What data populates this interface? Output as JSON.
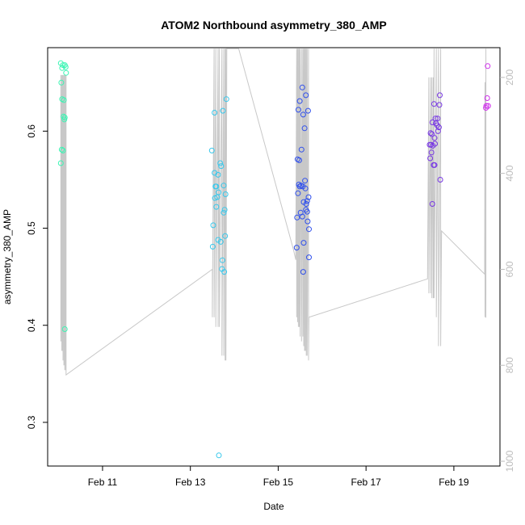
{
  "chart_data": {
    "type": "scatter",
    "title": "ATOM2 Northbound asymmetry_380_AMP",
    "xlabel": "Date",
    "ylabel": "asymmetry_380_AMP",
    "x_ticks": [
      "Feb 11",
      "Feb 13",
      "Feb 15",
      "Feb 17",
      "Feb 19"
    ],
    "x_tick_days": [
      11,
      13,
      15,
      17,
      19
    ],
    "xlim_days": [
      9.75,
      20.05
    ],
    "y_ticks": [
      0.3,
      0.4,
      0.5,
      0.6
    ],
    "ylim": [
      0.255,
      0.686
    ],
    "y2_ticks": [
      200,
      400,
      600,
      800,
      1000
    ],
    "y2lim": [
      1010,
      138
    ],
    "grid": false,
    "legend": "none",
    "colors": {
      "axis": "#000000",
      "line": "#c8c8c8",
      "right_axis": "#bdbdbd"
    },
    "series": [
      {
        "color": "#3cf5b4",
        "points": [
          [
            10.05,
            0.67
          ],
          [
            10.1,
            0.668
          ],
          [
            10.14,
            0.668
          ],
          [
            10.16,
            0.666
          ],
          [
            10.08,
            0.665
          ],
          [
            10.17,
            0.66
          ],
          [
            10.06,
            0.65
          ],
          [
            10.08,
            0.633
          ],
          [
            10.12,
            0.632
          ],
          [
            10.11,
            0.615
          ],
          [
            10.14,
            0.614
          ],
          [
            10.13,
            0.612
          ],
          [
            10.07,
            0.581
          ],
          [
            10.1,
            0.58
          ],
          [
            10.05,
            0.567
          ],
          [
            10.14,
            0.396
          ]
        ]
      },
      {
        "color": "#38c8ec",
        "points": [
          [
            13.55,
            0.619
          ],
          [
            13.74,
            0.621
          ],
          [
            13.82,
            0.633
          ],
          [
            13.49,
            0.58
          ],
          [
            13.68,
            0.567
          ],
          [
            13.7,
            0.564
          ],
          [
            13.55,
            0.557
          ],
          [
            13.63,
            0.555
          ],
          [
            13.59,
            0.543
          ],
          [
            13.57,
            0.543
          ],
          [
            13.76,
            0.544
          ],
          [
            13.64,
            0.537
          ],
          [
            13.8,
            0.535
          ],
          [
            13.61,
            0.532
          ],
          [
            13.56,
            0.531
          ],
          [
            13.59,
            0.522
          ],
          [
            13.78,
            0.519
          ],
          [
            13.76,
            0.516
          ],
          [
            13.52,
            0.503
          ],
          [
            13.79,
            0.492
          ],
          [
            13.63,
            0.488
          ],
          [
            13.69,
            0.486
          ],
          [
            13.51,
            0.481
          ],
          [
            13.73,
            0.467
          ],
          [
            13.72,
            0.458
          ],
          [
            13.77,
            0.455
          ],
          [
            13.65,
            0.266
          ]
        ]
      },
      {
        "color": "#3050ec",
        "points": [
          [
            15.55,
            0.645
          ],
          [
            15.63,
            0.637
          ],
          [
            15.49,
            0.631
          ],
          [
            15.46,
            0.622
          ],
          [
            15.68,
            0.621
          ],
          [
            15.57,
            0.617
          ],
          [
            15.6,
            0.603
          ],
          [
            15.53,
            0.581
          ],
          [
            15.44,
            0.571
          ],
          [
            15.48,
            0.57
          ],
          [
            15.61,
            0.549
          ],
          [
            15.47,
            0.545
          ],
          [
            15.52,
            0.544
          ],
          [
            15.49,
            0.543
          ],
          [
            15.56,
            0.543
          ],
          [
            15.62,
            0.541
          ],
          [
            15.45,
            0.536
          ],
          [
            15.69,
            0.532
          ],
          [
            15.66,
            0.528
          ],
          [
            15.58,
            0.527
          ],
          [
            15.64,
            0.525
          ],
          [
            15.63,
            0.519
          ],
          [
            15.51,
            0.516
          ],
          [
            15.66,
            0.517
          ],
          [
            15.43,
            0.511
          ],
          [
            15.55,
            0.512
          ],
          [
            15.67,
            0.507
          ],
          [
            15.7,
            0.499
          ],
          [
            15.58,
            0.485
          ],
          [
            15.42,
            0.48
          ],
          [
            15.7,
            0.47
          ],
          [
            15.57,
            0.455
          ]
        ]
      },
      {
        "color": "#7838e4",
        "points": [
          [
            18.68,
            0.637
          ],
          [
            18.55,
            0.628
          ],
          [
            18.67,
            0.627
          ],
          [
            18.58,
            0.613
          ],
          [
            18.63,
            0.613
          ],
          [
            18.51,
            0.609
          ],
          [
            18.59,
            0.608
          ],
          [
            18.62,
            0.606
          ],
          [
            18.66,
            0.604
          ],
          [
            18.64,
            0.6
          ],
          [
            18.47,
            0.598
          ],
          [
            18.5,
            0.597
          ],
          [
            18.56,
            0.593
          ],
          [
            18.57,
            0.587
          ],
          [
            18.48,
            0.586
          ],
          [
            18.52,
            0.585
          ],
          [
            18.45,
            0.586
          ],
          [
            18.49,
            0.578
          ],
          [
            18.46,
            0.572
          ],
          [
            18.54,
            0.565
          ],
          [
            18.56,
            0.565
          ],
          [
            18.69,
            0.55
          ],
          [
            18.51,
            0.525
          ]
        ]
      },
      {
        "color": "#d030ec",
        "points": [
          [
            19.77,
            0.667
          ],
          [
            19.76,
            0.634
          ],
          [
            19.74,
            0.626
          ],
          [
            19.78,
            0.626
          ],
          [
            19.73,
            0.624
          ]
        ]
      }
    ],
    "right_axis_line": [
      [
        10.05,
        195
      ],
      [
        10.05,
        750
      ],
      [
        10.07,
        195
      ],
      [
        10.07,
        770
      ],
      [
        10.09,
        195
      ],
      [
        10.09,
        770
      ],
      [
        10.1,
        195
      ],
      [
        10.1,
        790
      ],
      [
        10.12,
        195
      ],
      [
        10.12,
        800
      ],
      [
        10.13,
        195
      ],
      [
        10.13,
        800
      ],
      [
        10.14,
        195
      ],
      [
        10.14,
        810
      ],
      [
        10.16,
        195
      ],
      [
        10.16,
        810
      ],
      [
        10.17,
        195
      ],
      [
        10.17,
        820
      ],
      [
        13.5,
        600
      ],
      [
        13.5,
        700
      ],
      [
        13.54,
        140
      ],
      [
        13.54,
        700
      ],
      [
        13.58,
        140
      ],
      [
        13.58,
        720
      ],
      [
        13.63,
        140
      ],
      [
        13.63,
        720
      ],
      [
        13.66,
        140
      ],
      [
        13.66,
        720
      ],
      [
        13.72,
        140
      ],
      [
        13.72,
        780
      ],
      [
        13.76,
        140
      ],
      [
        13.76,
        780
      ],
      [
        13.79,
        140
      ],
      [
        13.79,
        790
      ],
      [
        13.81,
        140
      ],
      [
        13.81,
        790
      ],
      [
        13.83,
        140
      ],
      [
        14.1,
        140
      ],
      [
        15.35,
        560
      ],
      [
        15.4,
        580
      ],
      [
        15.42,
        140
      ],
      [
        15.42,
        700
      ],
      [
        15.44,
        140
      ],
      [
        15.44,
        710
      ],
      [
        15.46,
        140
      ],
      [
        15.46,
        720
      ],
      [
        15.48,
        140
      ],
      [
        15.48,
        720
      ],
      [
        15.5,
        140
      ],
      [
        15.5,
        740
      ],
      [
        15.53,
        140
      ],
      [
        15.53,
        750
      ],
      [
        15.56,
        140
      ],
      [
        15.56,
        740
      ],
      [
        15.58,
        140
      ],
      [
        15.58,
        760
      ],
      [
        15.6,
        140
      ],
      [
        15.6,
        770
      ],
      [
        15.62,
        140
      ],
      [
        15.62,
        770
      ],
      [
        15.64,
        140
      ],
      [
        15.64,
        780
      ],
      [
        15.66,
        140
      ],
      [
        15.66,
        780
      ],
      [
        15.69,
        140
      ],
      [
        15.69,
        790
      ],
      [
        15.7,
        700
      ],
      [
        18.4,
        620
      ],
      [
        18.43,
        200
      ],
      [
        18.43,
        650
      ],
      [
        18.47,
        200
      ],
      [
        18.47,
        650
      ],
      [
        18.5,
        200
      ],
      [
        18.5,
        660
      ],
      [
        18.53,
        200
      ],
      [
        18.53,
        660
      ],
      [
        18.55,
        140
      ],
      [
        18.55,
        660
      ],
      [
        18.6,
        140
      ],
      [
        18.6,
        700
      ],
      [
        18.65,
        140
      ],
      [
        18.65,
        760
      ],
      [
        18.7,
        140
      ],
      [
        18.7,
        760
      ],
      [
        18.72,
        520
      ],
      [
        19.7,
        610
      ],
      [
        19.71,
        210
      ],
      [
        19.71,
        700
      ],
      [
        19.73,
        140
      ],
      [
        19.73,
        700
      ],
      [
        19.74,
        700
      ]
    ]
  }
}
